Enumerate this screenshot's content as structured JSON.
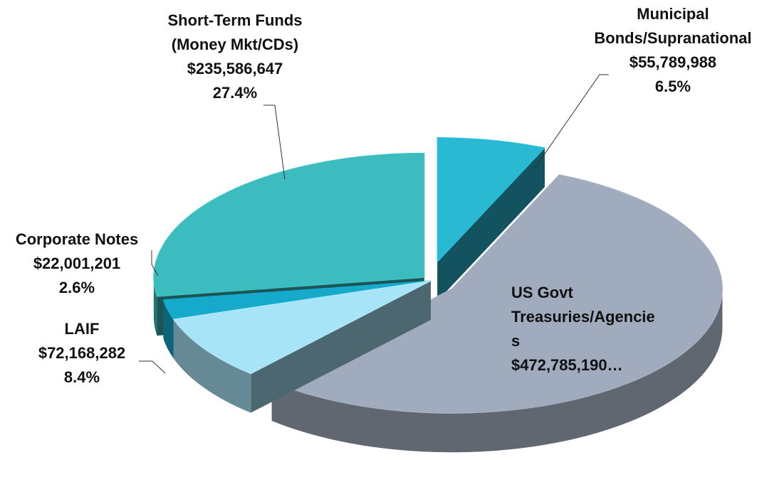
{
  "chart_data": {
    "type": "pie",
    "categories": [
      "Municipal\nBonds/Supranational",
      "US Govt\nTreasuries/Agencie\ns",
      "LAIF",
      "Corporate Notes",
      "Short-Term Funds\n(Money Mkt/CDs)"
    ],
    "values": [
      55789988,
      472785190,
      72168282,
      22001201,
      235586647
    ],
    "value_labels": [
      "$55,789,988",
      "$472,785,190…",
      "$72,168,282",
      "$22,001,201",
      "$235,586,647"
    ],
    "percent_labels": [
      "6.5%",
      null,
      "8.4%",
      "2.6%",
      "27.4%"
    ],
    "colors": [
      "#29b9d3",
      "#a0acbd",
      "#a8e4f8",
      "#15a9cc",
      "#3cbcbf"
    ]
  }
}
